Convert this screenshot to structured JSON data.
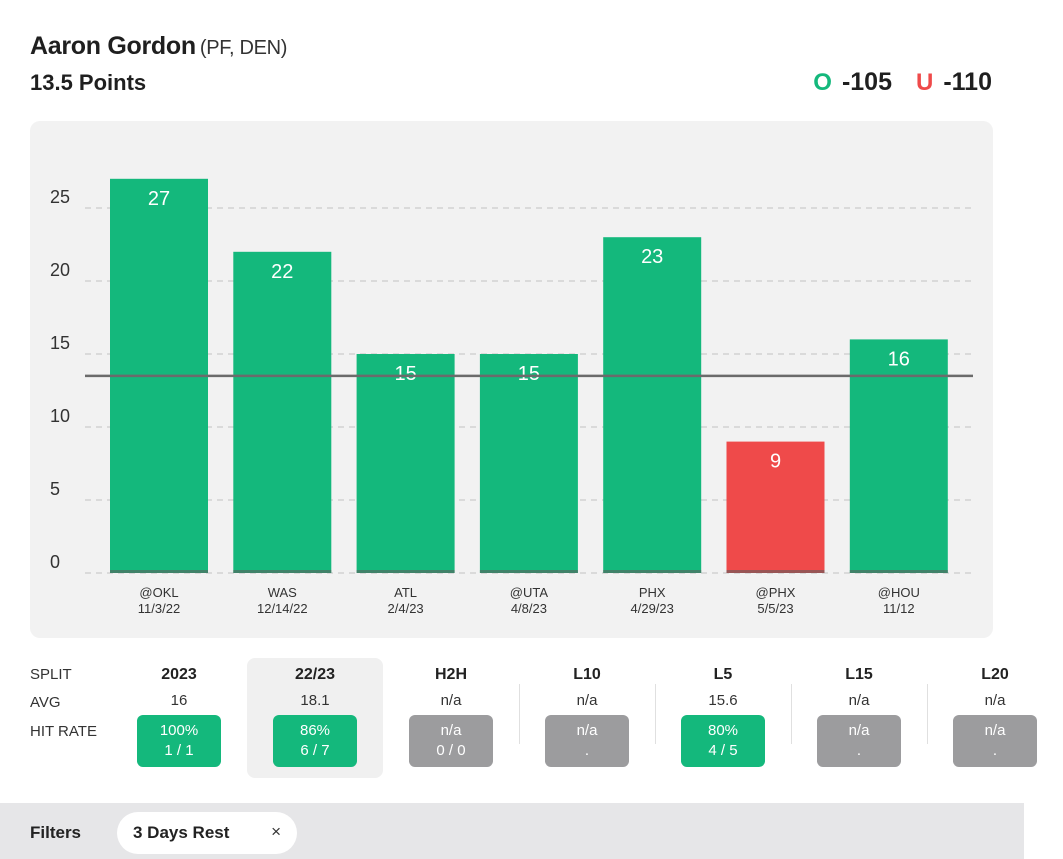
{
  "header": {
    "player_name": "Aaron Gordon",
    "player_meta": "(PF, DEN)",
    "prop_line": "13.5 Points",
    "over_label": "O",
    "over_odds": "-105",
    "under_label": "U",
    "under_odds": "-110"
  },
  "colors": {
    "hit": "#14b87c",
    "miss": "#ef4a4a",
    "na": "#9c9c9e",
    "line": "#6b6b6b"
  },
  "chart_data": {
    "type": "bar",
    "line_value": 13.5,
    "ylim": [
      0,
      28
    ],
    "yticks": [
      0,
      5,
      10,
      15,
      20,
      25
    ],
    "grid": true,
    "categories": [
      {
        "opp": "@OKL",
        "date": "11/3/22"
      },
      {
        "opp": "WAS",
        "date": "12/14/22"
      },
      {
        "opp": "ATL",
        "date": "2/4/23"
      },
      {
        "opp": "@UTA",
        "date": "4/8/23"
      },
      {
        "opp": "PHX",
        "date": "4/29/23"
      },
      {
        "opp": "@PHX",
        "date": "5/5/23"
      },
      {
        "opp": "@HOU",
        "date": "11/12"
      }
    ],
    "values": [
      27,
      22,
      15,
      15,
      23,
      9,
      16
    ]
  },
  "splits": {
    "row_labels": [
      "SPLIT",
      "AVG",
      "HIT RATE"
    ],
    "columns": [
      {
        "name": "2023",
        "avg": "16",
        "rate": "100%",
        "record": "1 / 1",
        "status": "good",
        "active": false
      },
      {
        "name": "22/23",
        "avg": "18.1",
        "rate": "86%",
        "record": "6 / 7",
        "status": "good",
        "active": true
      },
      {
        "name": "H2H",
        "avg": "n/a",
        "rate": "n/a",
        "record": "0 / 0",
        "status": "na",
        "active": false
      },
      {
        "name": "L10",
        "avg": "n/a",
        "rate": "n/a",
        "record": ".",
        "status": "na",
        "active": false
      },
      {
        "name": "L5",
        "avg": "15.6",
        "rate": "80%",
        "record": "4 / 5",
        "status": "good",
        "active": false
      },
      {
        "name": "L15",
        "avg": "n/a",
        "rate": "n/a",
        "record": ".",
        "status": "na",
        "active": false
      },
      {
        "name": "L20",
        "avg": "n/a",
        "rate": "n/a",
        "record": ".",
        "status": "na",
        "active": false
      }
    ]
  },
  "filters": {
    "label": "Filters",
    "chip_label": "3 Days Rest",
    "chip_close": "×"
  }
}
